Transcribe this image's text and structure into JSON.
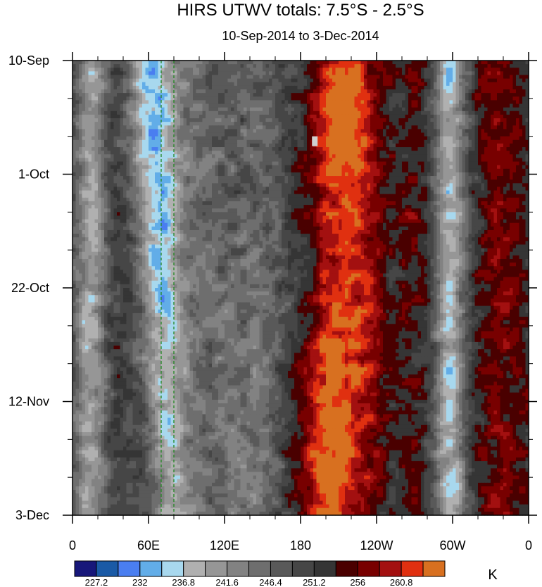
{
  "chart_data": {
    "type": "heatmap",
    "title": "HIRS UTWV totals: 7.5°S - 2.5°S",
    "subtitle": "10-Sep-2014 to 3-Dec-2014",
    "x_ticks": [
      "0",
      "60E",
      "120E",
      "180",
      "120W",
      "60W",
      "0"
    ],
    "y_ticks": [
      "10-Sep",
      "1-Oct",
      "22-Oct",
      "12-Nov",
      "3-Dec"
    ],
    "units": "K",
    "colorbar_labels": [
      "227.2",
      "232",
      "236.8",
      "241.6",
      "246.4",
      "251.2",
      "256",
      "260.8"
    ],
    "colorbar_colors": [
      "#17177a",
      "#1a5aa6",
      "#4a7ef0",
      "#62ade8",
      "#a8d8ee",
      "#b0b0b0",
      "#969696",
      "#828282",
      "#6e6e6e",
      "#595959",
      "#464646",
      "#353535",
      "#4a0000",
      "#780000",
      "#a31010",
      "#e03010",
      "#d87020"
    ],
    "reference_lines_lon": [
      70,
      80
    ],
    "reference_line_color": "#228822",
    "missing_color": "#d0d0d0",
    "x_range_lon": [
      0,
      360
    ],
    "y_range_days": [
      0,
      84
    ]
  }
}
